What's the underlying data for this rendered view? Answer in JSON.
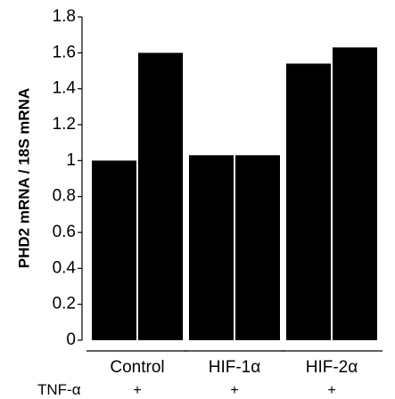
{
  "chart_data": {
    "type": "bar",
    "title": "",
    "xlabel": "",
    "ylabel": "PHD2 mRNA / 18S mRNA",
    "ylim": [
      0,
      1.8
    ],
    "yticks": [
      "0",
      "0.2",
      "0.4",
      "0.6",
      "0.8",
      "1",
      "1.2",
      "1.4",
      "1.6",
      "1.8"
    ],
    "grid": false,
    "legend": "none",
    "groups": [
      {
        "label": "Control",
        "treatment_marker": "+",
        "values": [
          1.0,
          1.6
        ]
      },
      {
        "label": "HIF-1α",
        "treatment_marker": "+",
        "values": [
          1.03,
          1.03
        ]
      },
      {
        "label": "HIF-2α",
        "treatment_marker": "+",
        "values": [
          1.54,
          1.63
        ]
      }
    ],
    "treatment_row_label": "TNF-α",
    "bar_color": "#000000"
  }
}
